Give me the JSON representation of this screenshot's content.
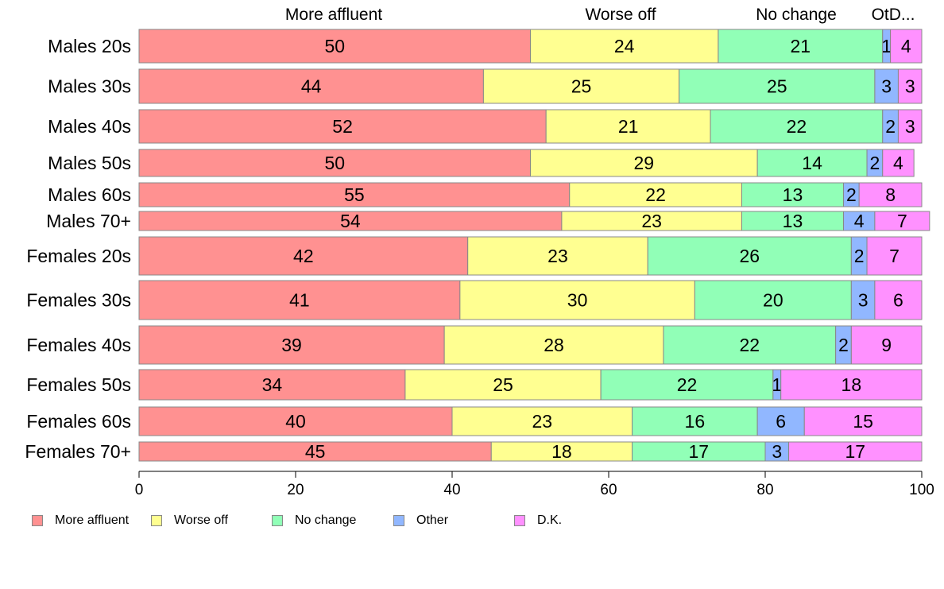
{
  "chart_data": {
    "type": "bar",
    "orientation": "horizontal",
    "stacked": true,
    "categories": [
      "Males 20s",
      "Males 30s",
      "Males 40s",
      "Males 50s",
      "Males 60s",
      "Males 70+",
      "Females 20s",
      "Females 30s",
      "Females 40s",
      "Females 50s",
      "Females 60s",
      "Females 70+"
    ],
    "series": [
      {
        "name": "More affluent",
        "color": "#ff9191",
        "values": [
          50,
          44,
          52,
          50,
          55,
          54,
          42,
          41,
          39,
          34,
          40,
          45
        ]
      },
      {
        "name": "Worse off",
        "color": "#ffff91",
        "values": [
          24,
          25,
          21,
          29,
          22,
          23,
          23,
          30,
          28,
          25,
          23,
          18
        ]
      },
      {
        "name": "No change",
        "color": "#91ffb7",
        "values": [
          21,
          25,
          22,
          14,
          13,
          13,
          26,
          20,
          22,
          22,
          16,
          17
        ]
      },
      {
        "name": "Other",
        "color": "#91b7ff",
        "values": [
          1,
          3,
          2,
          2,
          2,
          4,
          2,
          3,
          2,
          1,
          6,
          3
        ]
      },
      {
        "name": "D.K.",
        "color": "#ff91ff",
        "values": [
          4,
          3,
          3,
          4,
          8,
          7,
          7,
          6,
          9,
          18,
          15,
          17
        ]
      }
    ],
    "top_labels": [
      "More affluent",
      "Worse off",
      "No change",
      "OtD..."
    ],
    "xlim": [
      0,
      100
    ],
    "xticks": [
      "0",
      "20",
      "40",
      "60",
      "80",
      "100"
    ],
    "grid": false,
    "legend_position": "bottom-left"
  }
}
